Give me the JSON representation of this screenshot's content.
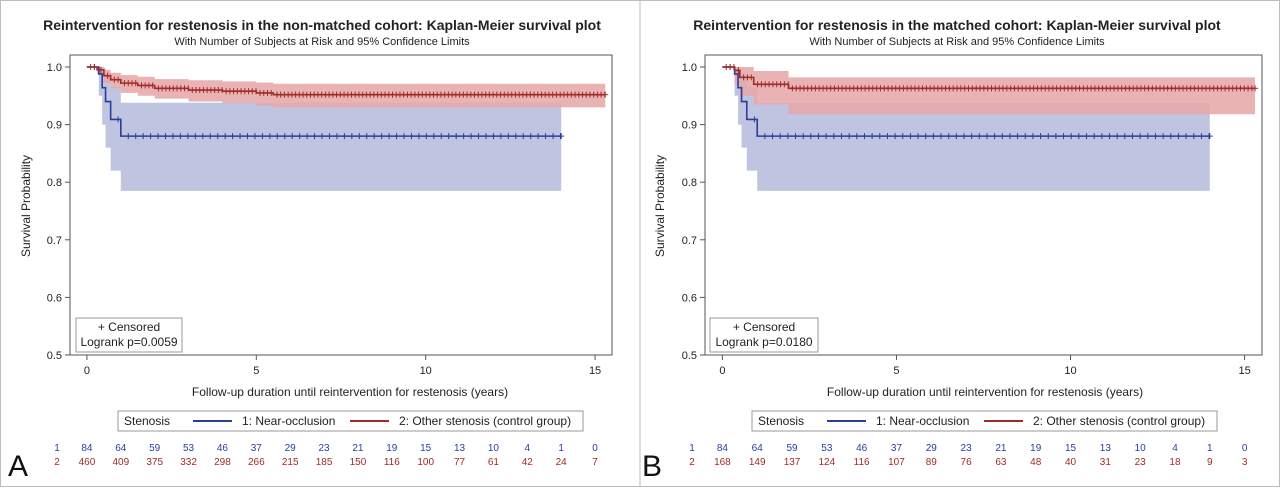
{
  "colors": {
    "near_occlusion": "#2a3d9a",
    "near_occlusion_band": "#b4bbdb",
    "other": "#a02a2a",
    "other_band": "#e6a6a6",
    "axis": "#555555"
  },
  "panels": [
    {
      "letter": "A",
      "title": "Reintervention for restenosis in the non-matched cohort: Kaplan-Meier survival plot",
      "subtitle": "With Number of Subjects at Risk and 95% Confidence Limits",
      "inset_censored": "+ Censored",
      "inset_logrank": "Logrank p=0.0059",
      "legend_title": "Stenosis",
      "legend_s1": "1: Near-occlusion",
      "legend_s2": "2: Other stenosis (control group)",
      "risk_label_1": "1",
      "risk_label_2": "2"
    },
    {
      "letter": "B",
      "title": "Reintervention for restenosis in the matched cohort: Kaplan-Meier survival plot",
      "subtitle": "With Number of Subjects at Risk and 95% Confidence Limits",
      "inset_censored": "+ Censored",
      "inset_logrank": "Logrank p=0.0180",
      "legend_title": "Stenosis",
      "legend_s1": "1: Near-occlusion",
      "legend_s2": "2: Other stenosis (control group)",
      "risk_label_1": "1",
      "risk_label_2": "2"
    }
  ],
  "chart_data": [
    {
      "type": "line",
      "title": "Reintervention for restenosis in the non-matched cohort: Kaplan-Meier survival plot",
      "subtitle": "With Number of Subjects at Risk and 95% Confidence Limits",
      "xlabel": "Follow-up duration until reintervention for restenosis (years)",
      "ylabel": "Survival Probability",
      "xlim": [
        -0.5,
        15.5
      ],
      "ylim": [
        0.5,
        1.0
      ],
      "x_ticks": [
        0,
        5,
        10,
        15
      ],
      "y_ticks": [
        0.5,
        0.6,
        0.7,
        0.8,
        0.9,
        1.0
      ],
      "y_tick_labels": [
        "0.5",
        "0.6",
        "0.7",
        "0.8",
        "0.9",
        "1.0"
      ],
      "legend": "bottom",
      "series": [
        {
          "name": "1: Near-occlusion",
          "x": [
            0,
            0.35,
            0.45,
            0.55,
            0.7,
            1.0,
            14.0
          ],
          "y": [
            1.0,
            0.988,
            0.964,
            0.94,
            0.909,
            0.88,
            0.88
          ],
          "ci_lower": [
            1.0,
            0.95,
            0.9,
            0.86,
            0.82,
            0.785,
            0.785
          ],
          "ci_upper": [
            1.0,
            1.0,
            0.998,
            0.985,
            0.965,
            0.938,
            0.938
          ]
        },
        {
          "name": "2: Other stenosis (control group)",
          "x": [
            0,
            0.3,
            0.5,
            0.7,
            1.0,
            1.5,
            2.0,
            3.0,
            4.0,
            5.0,
            5.5,
            15.3
          ],
          "y": [
            1.0,
            0.995,
            0.985,
            0.978,
            0.972,
            0.968,
            0.963,
            0.96,
            0.958,
            0.955,
            0.952,
            0.952
          ],
          "ci_lower": [
            1.0,
            0.988,
            0.972,
            0.963,
            0.955,
            0.95,
            0.945,
            0.94,
            0.937,
            0.933,
            0.93,
            0.93
          ],
          "ci_upper": [
            1.0,
            1.0,
            0.995,
            0.99,
            0.986,
            0.983,
            0.979,
            0.977,
            0.975,
            0.973,
            0.971,
            0.971
          ]
        }
      ],
      "risk_times": [
        0,
        1,
        2,
        3,
        4,
        5,
        6,
        7,
        8,
        9,
        10,
        11,
        12,
        13,
        14,
        15
      ],
      "risk_table": [
        {
          "group": "1",
          "values": [
            84,
            64,
            59,
            53,
            46,
            37,
            29,
            23,
            21,
            19,
            15,
            13,
            10,
            4,
            1,
            0
          ]
        },
        {
          "group": "2",
          "values": [
            460,
            409,
            375,
            332,
            298,
            266,
            215,
            185,
            150,
            116,
            100,
            77,
            61,
            42,
            24,
            7
          ]
        }
      ]
    },
    {
      "type": "line",
      "title": "Reintervention for restenosis in the matched cohort: Kaplan-Meier survival plot",
      "subtitle": "With Number of Subjects at Risk and 95% Confidence Limits",
      "xlabel": "Follow-up duration until reintervention for restenosis (years)",
      "ylabel": "Survival Probability",
      "xlim": [
        -0.5,
        15.5
      ],
      "ylim": [
        0.5,
        1.0
      ],
      "x_ticks": [
        0,
        5,
        10,
        15
      ],
      "y_ticks": [
        0.5,
        0.6,
        0.7,
        0.8,
        0.9,
        1.0
      ],
      "y_tick_labels": [
        "0.5",
        "0.6",
        "0.7",
        "0.8",
        "0.9",
        "1.0"
      ],
      "legend": "bottom",
      "series": [
        {
          "name": "1: Near-occlusion",
          "x": [
            0,
            0.35,
            0.45,
            0.55,
            0.7,
            1.0,
            14.0
          ],
          "y": [
            1.0,
            0.988,
            0.964,
            0.94,
            0.909,
            0.88,
            0.88
          ],
          "ci_lower": [
            1.0,
            0.95,
            0.9,
            0.86,
            0.82,
            0.785,
            0.785
          ],
          "ci_upper": [
            1.0,
            1.0,
            0.998,
            0.985,
            0.965,
            0.938,
            0.938
          ]
        },
        {
          "name": "2: Other stenosis (control group)",
          "x": [
            0,
            0.35,
            0.5,
            0.9,
            1.9,
            15.3
          ],
          "y": [
            1.0,
            0.994,
            0.982,
            0.97,
            0.963,
            0.963
          ],
          "ci_lower": [
            1.0,
            0.97,
            0.95,
            0.935,
            0.918,
            0.918
          ],
          "ci_upper": [
            1.0,
            1.0,
            1.0,
            0.993,
            0.982,
            0.982
          ]
        }
      ],
      "risk_times": [
        0,
        1,
        2,
        3,
        4,
        5,
        6,
        7,
        8,
        9,
        10,
        11,
        12,
        13,
        14,
        15
      ],
      "risk_table": [
        {
          "group": "1",
          "values": [
            84,
            64,
            59,
            53,
            46,
            37,
            29,
            23,
            21,
            19,
            15,
            13,
            10,
            4,
            1,
            0
          ]
        },
        {
          "group": "2",
          "values": [
            168,
            149,
            137,
            124,
            116,
            107,
            89,
            76,
            63,
            48,
            40,
            31,
            23,
            18,
            9,
            3
          ]
        }
      ]
    }
  ]
}
